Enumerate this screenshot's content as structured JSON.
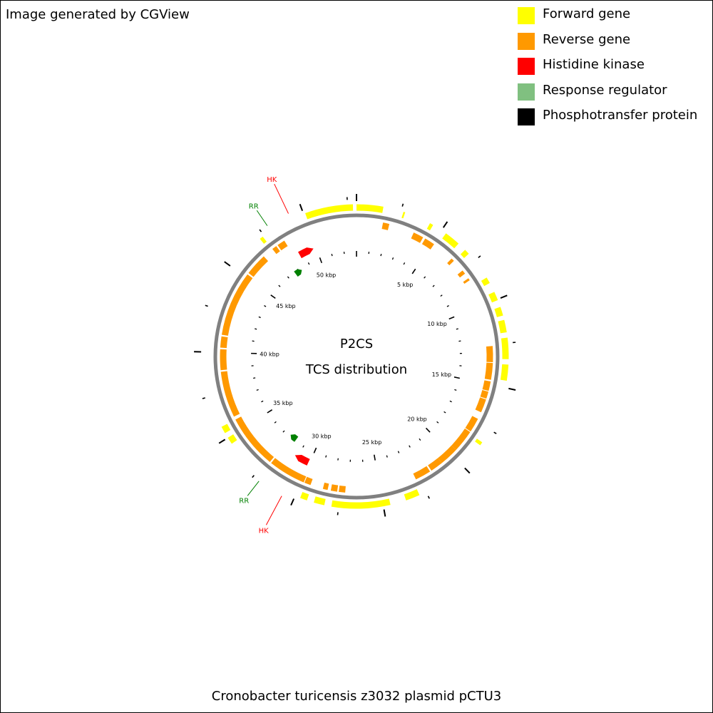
{
  "credit": "Image generated by CGView",
  "legend": [
    {
      "label": "Forward gene",
      "color": "#ffff00"
    },
    {
      "label": "Reverse gene",
      "color": "#ff9900"
    },
    {
      "label": "Histidine kinase",
      "color": "#ff0000"
    },
    {
      "label": "Response regulator",
      "color": "#80c080"
    },
    {
      "label": "Phosphotransfer protein",
      "color": "#000000"
    }
  ],
  "center_title": "P2CS",
  "center_subtitle": "TCS distribution",
  "caption": "Cronobacter turicensis z3032 plasmid pCTU3",
  "map": {
    "sequence_length_bp": 53000,
    "backbone_color": "#808080",
    "ruler_labels": [
      {
        "label": "5 kbp",
        "pos": 5000
      },
      {
        "label": "10 kbp",
        "pos": 10000
      },
      {
        "label": "15 kbp",
        "pos": 15000
      },
      {
        "label": "20 kbp",
        "pos": 20000
      },
      {
        "label": "25 kbp",
        "pos": 25000
      },
      {
        "label": "30 kbp",
        "pos": 30000
      },
      {
        "label": "35 kbp",
        "pos": 35000
      },
      {
        "label": "40 kbp",
        "pos": 40000
      },
      {
        "label": "45 kbp",
        "pos": 45000
      },
      {
        "label": "50 kbp",
        "pos": 50000
      }
    ],
    "forward_genes": [
      [
        0,
        1500
      ],
      [
        50100,
        52800
      ],
      [
        2650,
        2750
      ],
      [
        4250,
        4450
      ],
      [
        5300,
        6200
      ],
      [
        6700,
        7000
      ],
      [
        8650,
        9000
      ],
      [
        9550,
        10050
      ],
      [
        10450,
        10950
      ],
      [
        11200,
        11900
      ],
      [
        12200,
        13400
      ],
      [
        13700,
        14600
      ],
      [
        18300,
        18500
      ],
      [
        22900,
        23700
      ],
      [
        24600,
        27900
      ],
      [
        28300,
        28900
      ],
      [
        29300,
        29700
      ],
      [
        34600,
        35000
      ],
      [
        35300,
        35700
      ],
      [
        47200,
        47400
      ]
    ],
    "reverse_genes": [
      [
        1650,
        2050
      ],
      [
        3650,
        4300
      ],
      [
        4450,
        5100
      ],
      [
        6500,
        6700
      ],
      [
        7500,
        7750
      ],
      [
        8100,
        8250
      ],
      [
        12600,
        13600
      ],
      [
        13650,
        14700
      ],
      [
        14800,
        15400
      ],
      [
        15450,
        15900
      ],
      [
        15950,
        16800
      ],
      [
        17250,
        18150
      ],
      [
        18200,
        19600
      ],
      [
        19600,
        20800
      ],
      [
        20800,
        21600
      ],
      [
        21700,
        22700
      ],
      [
        27200,
        27600
      ],
      [
        27700,
        28100
      ],
      [
        28300,
        28600
      ],
      [
        29400,
        29800
      ],
      [
        29850,
        32200
      ],
      [
        32300,
        35700
      ],
      [
        35900,
        38800
      ],
      [
        38900,
        40200
      ],
      [
        40300,
        41000
      ],
      [
        41100,
        45200
      ],
      [
        45300,
        46700
      ],
      [
        47400,
        47700
      ],
      [
        47800,
        48300
      ]
    ],
    "histidine_kinases": [
      [
        48700,
        49800
      ],
      [
        30100,
        31200
      ]
    ],
    "response_regulators": [
      [
        47650,
        48250
      ],
      [
        31800,
        32400
      ]
    ],
    "annotations": [
      {
        "label": "HK",
        "gene_pos": 49250,
        "color": "#ff0000"
      },
      {
        "label": "RR",
        "gene_pos": 47950,
        "color": "#008000"
      },
      {
        "label": "RR",
        "gene_pos": 32100,
        "color": "#008000"
      },
      {
        "label": "HK",
        "gene_pos": 30650,
        "color": "#ff0000"
      }
    ]
  }
}
